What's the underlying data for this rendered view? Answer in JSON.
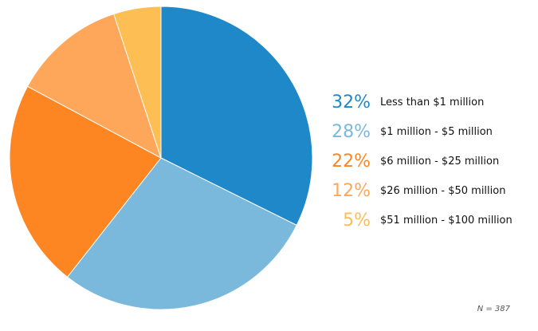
{
  "chart_data": {
    "type": "pie",
    "start": "top",
    "direction": "clockwise",
    "slices": [
      {
        "label": "Less than $1 million",
        "value": 32,
        "display": "32%",
        "color": "#1f88c9"
      },
      {
        "label": "$1 million - $5 million",
        "value": 28,
        "display": "28%",
        "color": "#7ab9dc"
      },
      {
        "label": "$6 million - $25 million",
        "value": 22,
        "display": "22%",
        "color": "#fd8622"
      },
      {
        "label": "$26 million - $50 million",
        "value": 12,
        "display": "12%",
        "color": "#fea75a"
      },
      {
        "label": "$51 million - $100 million",
        "value": 5,
        "display": "5%",
        "color": "#fdbe53"
      }
    ],
    "note": "N = 387",
    "legend_position": "right"
  }
}
